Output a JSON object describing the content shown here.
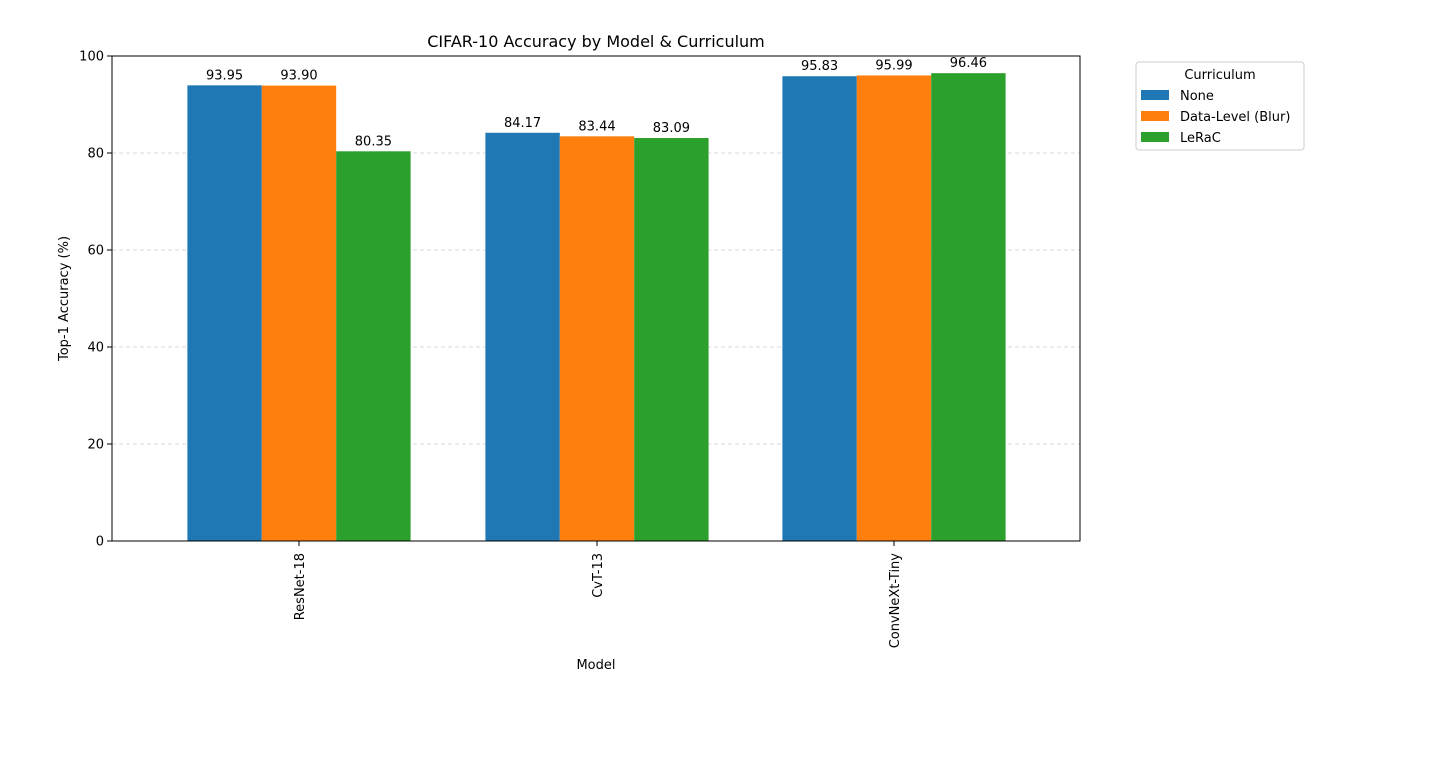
{
  "chart_data": {
    "type": "bar",
    "title": "CIFAR-10 Accuracy by Model & Curriculum",
    "xlabel": "Model",
    "ylabel": "Top-1 Accuracy (%)",
    "ylim": [
      0,
      100
    ],
    "yticks": [
      "0",
      "20",
      "40",
      "60",
      "80",
      "100"
    ],
    "categories": [
      "ResNet-18",
      "CvT-13",
      "ConvNeXt-Tiny"
    ],
    "grid": "horizontal dashed",
    "legend": {
      "title": "Curriculum",
      "placement": "outside upper-right"
    },
    "series": [
      {
        "name": "None",
        "color": "#1f77b4",
        "values": [
          93.95,
          84.17,
          95.83
        ],
        "labels": [
          "93.95",
          "84.17",
          "95.83"
        ]
      },
      {
        "name": "Data-Level (Blur)",
        "color": "#ff7f0e",
        "values": [
          93.9,
          83.44,
          95.99
        ],
        "labels": [
          "93.90",
          "83.44",
          "95.99"
        ]
      },
      {
        "name": "LeRaC",
        "color": "#2ca02c",
        "values": [
          80.35,
          83.09,
          96.46
        ],
        "labels": [
          "80.35",
          "83.09",
          "96.46"
        ]
      }
    ]
  }
}
